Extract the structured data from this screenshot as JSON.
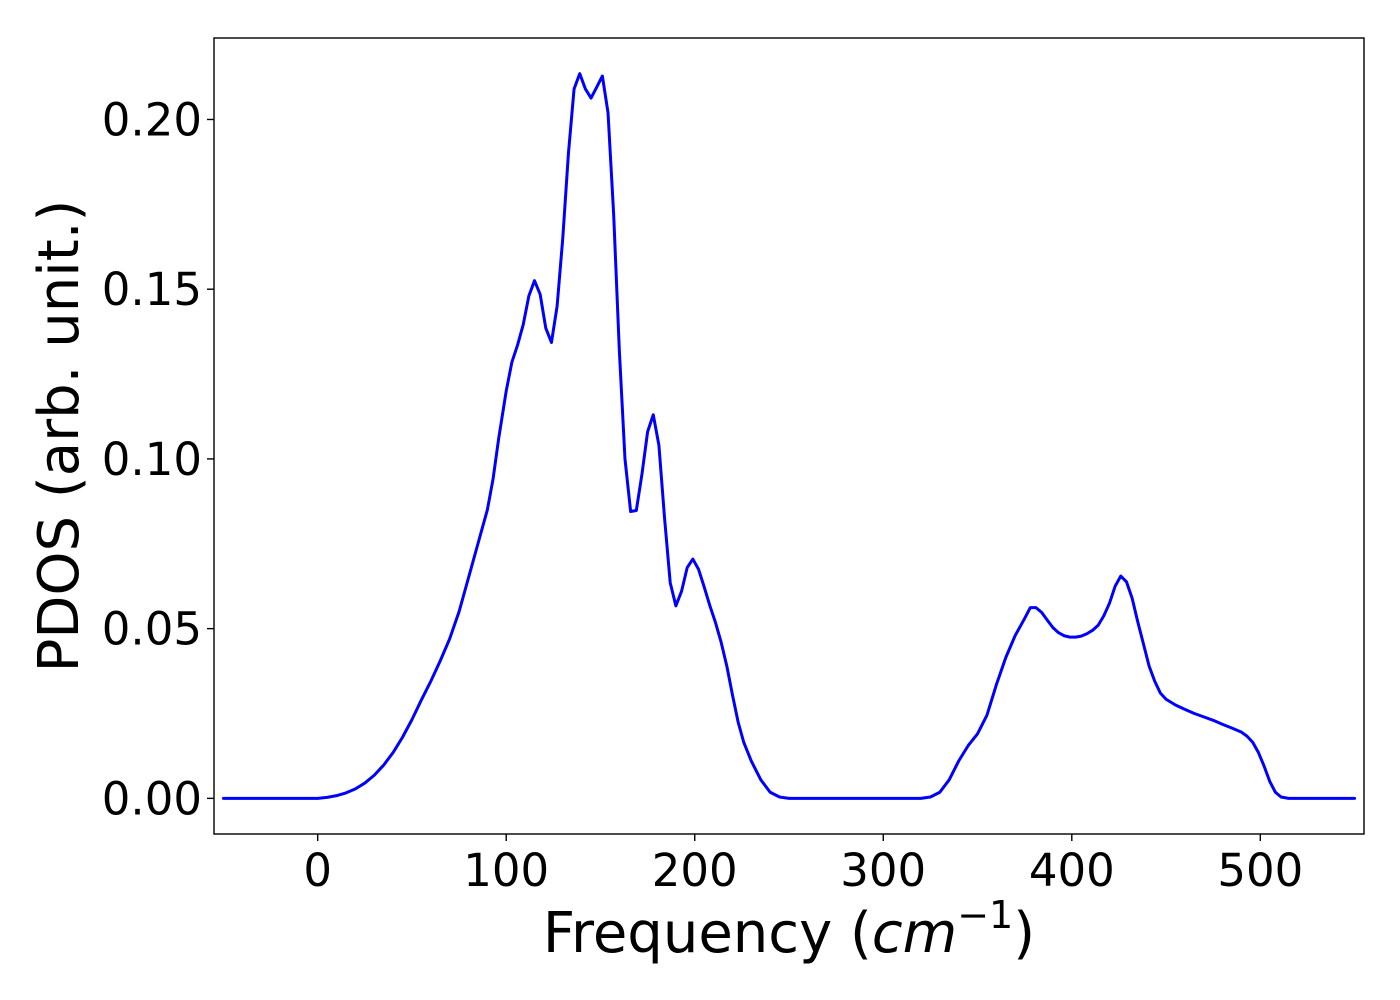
{
  "chart_data": {
    "type": "line",
    "title": "",
    "xlabel_text": "Frequency (",
    "xlabel_math": "cm",
    "xlabel_sup": "−1",
    "xlabel_close": ")",
    "ylabel": "PDOS (arb. unit.)",
    "xlim": [
      -55,
      555
    ],
    "ylim": [
      -0.0105,
      0.224
    ],
    "xticks": [
      0,
      100,
      200,
      300,
      400,
      500
    ],
    "xtick_labels": [
      "0",
      "100",
      "200",
      "300",
      "400",
      "500"
    ],
    "yticks": [
      0,
      0.05,
      0.1,
      0.15,
      0.2
    ],
    "ytick_labels": [
      "0.00",
      "0.05",
      "0.10",
      "0.15",
      "0.20"
    ],
    "grid": false,
    "legend": "none",
    "colors": {
      "line": "#0000ff",
      "axes": "#000000",
      "background": "#ffffff"
    },
    "series": [
      {
        "x": [
          -50,
          -40,
          -30,
          -20,
          -10,
          0,
          5,
          10,
          15,
          20,
          25,
          30,
          35,
          40,
          45,
          50,
          55,
          60,
          65,
          70,
          75,
          80,
          85,
          90,
          93,
          96,
          100,
          103,
          106,
          109,
          112,
          115,
          118,
          121,
          124,
          127,
          130,
          133,
          136,
          139,
          142,
          145,
          148,
          151,
          154,
          157,
          160,
          163,
          166,
          169,
          172,
          175,
          178,
          181,
          184,
          187,
          190,
          193,
          196,
          199,
          202,
          205,
          208,
          211,
          214,
          217,
          220,
          223,
          226,
          230,
          235,
          240,
          245,
          250,
          260,
          280,
          300,
          320,
          325,
          330,
          335,
          340,
          345,
          350,
          355,
          360,
          365,
          370,
          375,
          378,
          381,
          384,
          387,
          390,
          393,
          396,
          399,
          402,
          405,
          408,
          411,
          414,
          417,
          420,
          423,
          426,
          429,
          432,
          435,
          438,
          441,
          444,
          447,
          450,
          455,
          460,
          465,
          470,
          475,
          480,
          485,
          490,
          493,
          496,
          499,
          502,
          505,
          508,
          511,
          515,
          520,
          530,
          540,
          550
        ],
        "y": [
          0,
          0,
          0,
          0,
          0,
          0,
          0.0003,
          0.0008,
          0.0016,
          0.0028,
          0.0045,
          0.0068,
          0.0098,
          0.0135,
          0.018,
          0.0232,
          0.029,
          0.0345,
          0.0405,
          0.047,
          0.055,
          0.065,
          0.075,
          0.085,
          0.094,
          0.106,
          0.12,
          0.1285,
          0.1335,
          0.1395,
          0.148,
          0.1525,
          0.1485,
          0.1385,
          0.1343,
          0.145,
          0.165,
          0.19,
          0.209,
          0.2135,
          0.209,
          0.2063,
          0.2095,
          0.2128,
          0.202,
          0.172,
          0.132,
          0.1,
          0.0845,
          0.0848,
          0.0955,
          0.108,
          0.113,
          0.104,
          0.0825,
          0.0635,
          0.0567,
          0.061,
          0.068,
          0.0705,
          0.0675,
          0.0623,
          0.0568,
          0.0518,
          0.046,
          0.039,
          0.0305,
          0.0225,
          0.0165,
          0.011,
          0.0055,
          0.0018,
          0.0004,
          0,
          0,
          0,
          0,
          0,
          0.0004,
          0.0018,
          0.0055,
          0.011,
          0.0155,
          0.019,
          0.0245,
          0.0335,
          0.0415,
          0.048,
          0.053,
          0.0562,
          0.0562,
          0.0548,
          0.0525,
          0.0503,
          0.0488,
          0.0479,
          0.0475,
          0.0475,
          0.0478,
          0.0485,
          0.0495,
          0.051,
          0.0538,
          0.0575,
          0.0625,
          0.0655,
          0.0638,
          0.059,
          0.052,
          0.0455,
          0.039,
          0.0345,
          0.031,
          0.0292,
          0.0275,
          0.0262,
          0.025,
          0.024,
          0.023,
          0.0218,
          0.0207,
          0.0195,
          0.0183,
          0.0165,
          0.0135,
          0.0095,
          0.005,
          0.0018,
          0.0004,
          0,
          0,
          0,
          0,
          0
        ]
      }
    ]
  }
}
